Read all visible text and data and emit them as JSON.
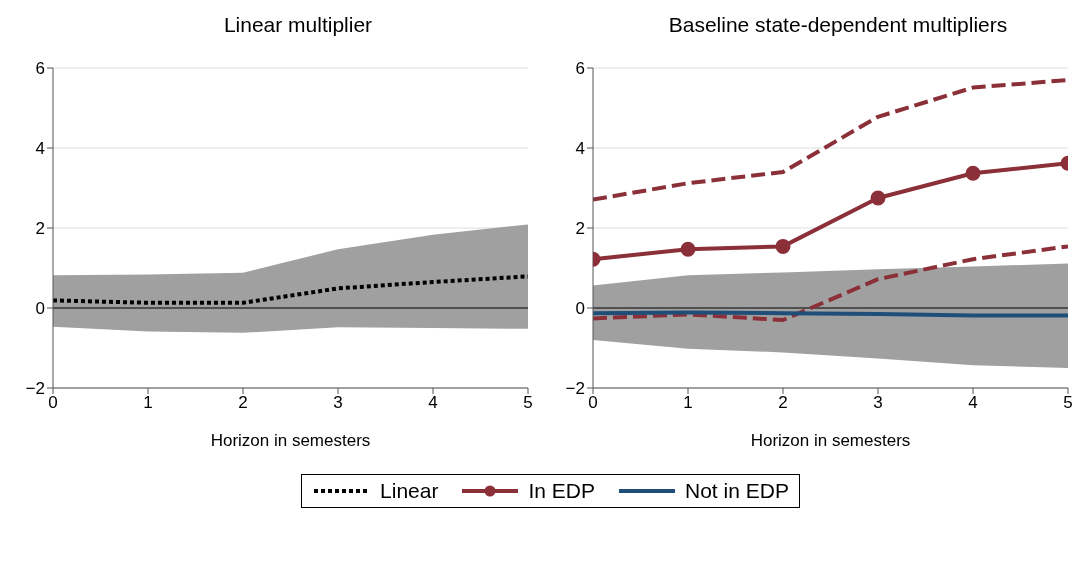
{
  "chart_data": [
    {
      "type": "line",
      "title": "Linear multiplier",
      "xlabel": "Horizon in semesters",
      "x": [
        0,
        1,
        2,
        3,
        4,
        5
      ],
      "xlim": [
        0,
        5
      ],
      "xticks": [
        0,
        1,
        2,
        3,
        4,
        5
      ],
      "ylim": [
        -2,
        6
      ],
      "yticks": [
        -2,
        0,
        2,
        4,
        6
      ],
      "grid": "y",
      "legend": "bottom",
      "ref_lines": [
        {
          "axis": "y",
          "value": 0,
          "color": "#000000"
        }
      ],
      "series": [
        {
          "name": "Linear",
          "color": "#000000",
          "line_style": "dotted",
          "marker": "none",
          "values": [
            0.19,
            0.13,
            0.13,
            0.49,
            0.65,
            0.79
          ],
          "lower": [
            -0.47,
            -0.59,
            -0.62,
            -0.48,
            -0.5,
            -0.52
          ],
          "upper": [
            0.82,
            0.84,
            0.88,
            1.47,
            1.83,
            2.09
          ]
        }
      ]
    },
    {
      "type": "line",
      "title": "Baseline state-dependent multipliers",
      "xlabel": "Horizon in semesters",
      "x": [
        0,
        1,
        2,
        3,
        4,
        5
      ],
      "xlim": [
        0,
        5
      ],
      "xticks": [
        0,
        1,
        2,
        3,
        4,
        5
      ],
      "ylim": [
        -2,
        6
      ],
      "yticks": [
        -2,
        0,
        2,
        4,
        6
      ],
      "grid": "y",
      "legend": "bottom",
      "ref_lines": [
        {
          "axis": "y",
          "value": 0,
          "color": "#000000"
        }
      ],
      "series": [
        {
          "color": "#8b3038",
          "line_style": "dashed",
          "marker": "none",
          "values": [
            2.71,
            3.12,
            3.4,
            4.78,
            5.51,
            5.7
          ]
        },
        {
          "color": "#8b3038",
          "line_style": "dashed",
          "marker": "none",
          "values": [
            -0.26,
            -0.16,
            -0.3,
            0.72,
            1.22,
            1.54
          ]
        },
        {
          "name": "In EDP",
          "color": "#8b3038",
          "line_style": "solid",
          "marker": "circle",
          "values": [
            1.22,
            1.47,
            1.54,
            2.75,
            3.37,
            3.62
          ]
        },
        {
          "name": "Not in EDP",
          "color": "#1f4e79",
          "line_style": "solid",
          "marker": "none",
          "values": [
            -0.13,
            -0.11,
            -0.13,
            -0.15,
            -0.19,
            -0.19
          ],
          "lower": [
            -0.8,
            -1.02,
            -1.11,
            -1.26,
            -1.43,
            -1.5
          ],
          "upper": [
            0.56,
            0.82,
            0.89,
            0.97,
            1.04,
            1.11
          ]
        }
      ]
    }
  ]
}
